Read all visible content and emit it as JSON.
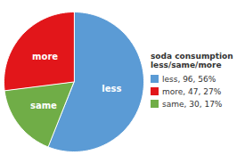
{
  "chart_data": {
    "type": "pie",
    "title": "soda consumption\nless/same/more",
    "categories": [
      "less",
      "same",
      "more"
    ],
    "values": [
      56,
      17,
      27
    ],
    "colors": [
      "#5b9bd5",
      "#70ad47",
      "#e2161a"
    ],
    "legend_entries": [
      {
        "label": "less, 96, 56%",
        "color": "#5b9bd5"
      },
      {
        "label": "more, 47, 27%",
        "color": "#e2161a"
      },
      {
        "label": "same, 30, 17%",
        "color": "#70ad47"
      }
    ],
    "legend": "right"
  }
}
